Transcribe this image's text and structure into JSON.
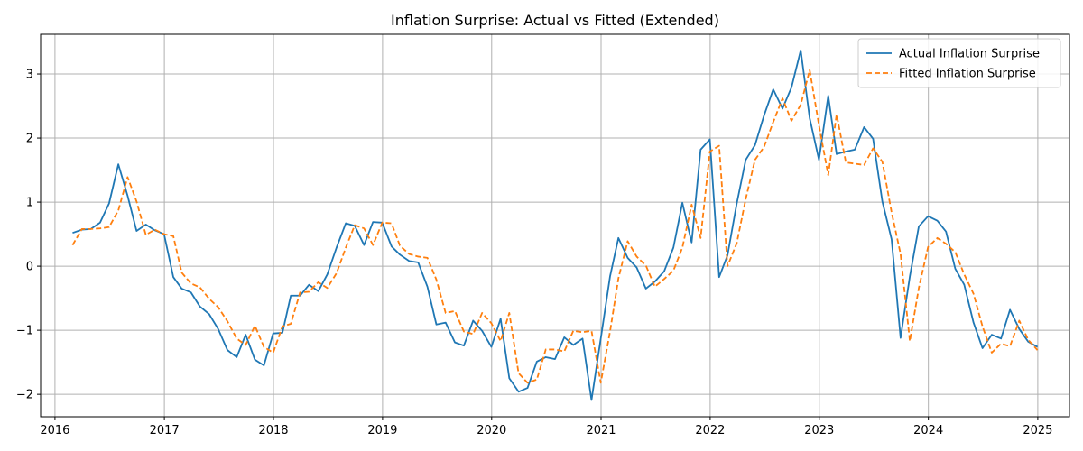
{
  "chart_data": {
    "type": "line",
    "title": "Inflation Surprise: Actual vs Fitted (Extended)",
    "xlabel": "",
    "ylabel": "",
    "xlim": [
      "2015-11-14",
      "2025-04-17"
    ],
    "ylim": [
      -2.35,
      3.62
    ],
    "x_ticks": [
      "2016",
      "2017",
      "2018",
      "2019",
      "2020",
      "2021",
      "2022",
      "2023",
      "2024",
      "2025"
    ],
    "y_ticks": [
      -2,
      -1,
      0,
      1,
      2,
      3
    ],
    "y_tick_labels": [
      "−2",
      "−1",
      "0",
      "1",
      "2",
      "3"
    ],
    "grid": true,
    "legend": "top-right",
    "x": [
      "2016-02-29",
      "2016-03-31",
      "2016-04-30",
      "2016-05-31",
      "2016-06-30",
      "2016-07-31",
      "2016-08-31",
      "2016-09-30",
      "2016-10-31",
      "2016-11-30",
      "2016-12-31",
      "2017-01-31",
      "2017-02-28",
      "2017-03-31",
      "2017-04-30",
      "2017-05-31",
      "2017-06-30",
      "2017-07-31",
      "2017-08-31",
      "2017-09-30",
      "2017-10-31",
      "2017-11-30",
      "2017-12-31",
      "2018-01-31",
      "2018-02-28",
      "2018-03-31",
      "2018-04-30",
      "2018-05-31",
      "2018-06-30",
      "2018-07-31",
      "2018-08-31",
      "2018-09-30",
      "2018-10-31",
      "2018-11-30",
      "2018-12-31",
      "2019-01-31",
      "2019-02-28",
      "2019-03-31",
      "2019-04-30",
      "2019-05-31",
      "2019-06-30",
      "2019-07-31",
      "2019-08-31",
      "2019-09-30",
      "2019-10-31",
      "2019-11-30",
      "2019-12-31",
      "2020-01-31",
      "2020-02-29",
      "2020-03-31",
      "2020-04-30",
      "2020-05-31",
      "2020-06-30",
      "2020-07-31",
      "2020-08-31",
      "2020-09-30",
      "2020-10-31",
      "2020-11-30",
      "2020-12-31",
      "2021-01-31",
      "2021-02-28",
      "2021-03-31",
      "2021-04-30",
      "2021-05-31",
      "2021-06-30",
      "2021-07-31",
      "2021-08-31",
      "2021-09-30",
      "2021-10-31",
      "2021-11-30",
      "2021-12-31",
      "2022-01-31",
      "2022-02-28",
      "2022-03-31",
      "2022-04-30",
      "2022-05-31",
      "2022-06-30",
      "2022-07-31",
      "2022-08-31",
      "2022-09-30",
      "2022-10-31",
      "2022-11-30",
      "2022-12-31",
      "2023-01-31",
      "2023-02-28",
      "2023-03-31",
      "2023-04-30",
      "2023-05-31",
      "2023-06-30",
      "2023-07-31",
      "2023-08-31",
      "2023-09-30",
      "2023-10-31",
      "2023-11-30",
      "2023-12-31",
      "2024-01-31",
      "2024-02-29",
      "2024-03-31",
      "2024-04-30",
      "2024-05-31",
      "2024-06-30",
      "2024-07-31",
      "2024-08-31",
      "2024-09-30",
      "2024-10-31",
      "2024-11-30",
      "2024-12-31"
    ],
    "series": [
      {
        "name": "Actual Inflation Surprise",
        "color": "#1f77b4",
        "dash": "solid",
        "values": [
          0.52,
          0.57,
          0.58,
          0.68,
          0.98,
          1.59,
          1.1,
          0.55,
          0.65,
          0.56,
          0.5,
          -0.17,
          -0.35,
          -0.41,
          -0.63,
          -0.75,
          -0.98,
          -1.31,
          -1.42,
          -1.07,
          -1.46,
          -1.55,
          -1.05,
          -1.04,
          -0.46,
          -0.46,
          -0.29,
          -0.39,
          -0.13,
          0.29,
          0.67,
          0.63,
          0.33,
          0.69,
          0.68,
          0.31,
          0.18,
          0.08,
          0.06,
          -0.32,
          -0.91,
          -0.88,
          -1.19,
          -1.24,
          -0.85,
          -1.01,
          -1.26,
          -0.82,
          -1.75,
          -1.96,
          -1.9,
          -1.49,
          -1.42,
          -1.45,
          -1.11,
          -1.23,
          -1.13,
          -2.09,
          -1.13,
          -0.16,
          0.44,
          0.13,
          -0.02,
          -0.35,
          -0.24,
          -0.08,
          0.29,
          0.99,
          0.37,
          1.82,
          1.98,
          -0.17,
          0.17,
          0.98,
          1.66,
          1.89,
          2.35,
          2.76,
          2.46,
          2.79,
          3.37,
          2.31,
          1.66,
          2.66,
          1.75,
          1.79,
          1.82,
          2.17,
          1.99,
          1.01,
          0.42,
          -1.12,
          -0.16,
          0.62,
          0.78,
          0.71,
          0.54,
          -0.04,
          -0.29,
          -0.88,
          -1.28,
          -1.07,
          -1.13,
          -0.68,
          -0.98,
          -1.18,
          -1.26
        ]
      },
      {
        "name": "Fitted Inflation Surprise",
        "color": "#ff7f0e",
        "dash": "dashed",
        "values": [
          0.33,
          0.58,
          0.58,
          0.59,
          0.61,
          0.87,
          1.39,
          1.01,
          0.49,
          0.57,
          0.5,
          0.47,
          -0.1,
          -0.27,
          -0.33,
          -0.51,
          -0.64,
          -0.86,
          -1.13,
          -1.23,
          -0.93,
          -1.26,
          -1.35,
          -0.94,
          -0.9,
          -0.41,
          -0.4,
          -0.25,
          -0.34,
          -0.11,
          0.29,
          0.64,
          0.59,
          0.33,
          0.68,
          0.67,
          0.32,
          0.19,
          0.15,
          0.13,
          -0.21,
          -0.73,
          -0.7,
          -1.02,
          -1.06,
          -0.73,
          -0.89,
          -1.17,
          -0.73,
          -1.67,
          -1.82,
          -1.77,
          -1.3,
          -1.3,
          -1.33,
          -1.01,
          -1.03,
          -1.01,
          -1.82,
          -1.02,
          -0.19,
          0.39,
          0.15,
          0.01,
          -0.32,
          -0.2,
          -0.07,
          0.29,
          0.96,
          0.44,
          1.79,
          1.88,
          0,
          0.36,
          1.05,
          1.66,
          1.86,
          2.25,
          2.62,
          2.27,
          2.52,
          3.06,
          2.2,
          1.42,
          2.37,
          1.62,
          1.6,
          1.58,
          1.84,
          1.63,
          0.84,
          0.19,
          -1.17,
          -0.34,
          0.3,
          0.44,
          0.35,
          0.22,
          -0.13,
          -0.43,
          -0.94,
          -1.35,
          -1.21,
          -1.25,
          -0.85,
          -1.15,
          -1.31
        ]
      }
    ]
  }
}
